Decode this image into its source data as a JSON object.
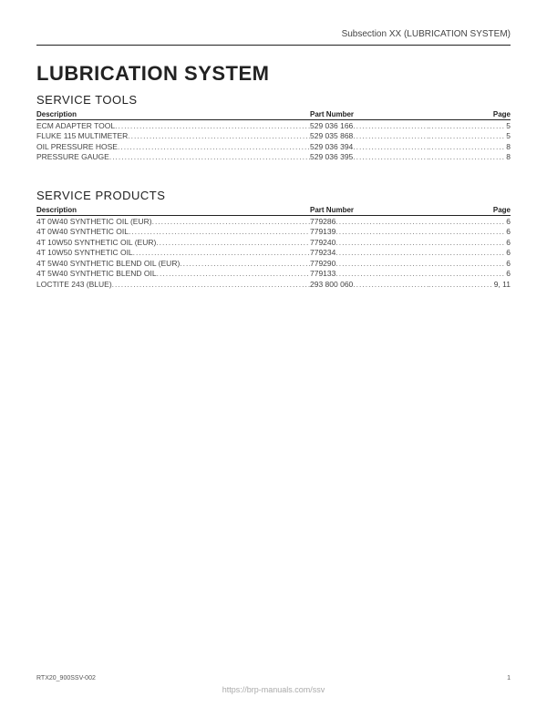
{
  "header": {
    "subsection": "Subsection XX (LUBRICATION SYSTEM)"
  },
  "title": "LUBRICATION SYSTEM",
  "sections": {
    "tools": {
      "heading": "SERVICE TOOLS",
      "columns": {
        "desc": "Description",
        "part": "Part Number",
        "page": "Page"
      },
      "rows": [
        {
          "desc": "ECM ADAPTER TOOL",
          "part": "529 036 166",
          "page": "5"
        },
        {
          "desc": "FLUKE 115 MULTIMETER",
          "part": "529 035 868",
          "page": "5"
        },
        {
          "desc": "OIL PRESSURE HOSE",
          "part": "529 036 394",
          "page": "8"
        },
        {
          "desc": "PRESSURE GAUGE",
          "part": "529 036 395",
          "page": "8"
        }
      ]
    },
    "products": {
      "heading": "SERVICE PRODUCTS",
      "columns": {
        "desc": "Description",
        "part": "Part Number",
        "page": "Page"
      },
      "rows": [
        {
          "desc": "4T 0W40 SYNTHETIC OIL (EUR)",
          "part": "779286",
          "page": "6"
        },
        {
          "desc": "4T 0W40 SYNTHETIC OIL",
          "part": "779139",
          "page": "6"
        },
        {
          "desc": "4T 10W50 SYNTHETIC OIL (EUR)",
          "part": "779240",
          "page": "6"
        },
        {
          "desc": "4T 10W50 SYNTHETIC OIL",
          "part": "779234",
          "page": "6"
        },
        {
          "desc": "4T 5W40 SYNTHETIC BLEND OIL (EUR)",
          "part": "779290",
          "page": "6"
        },
        {
          "desc": "4T 5W40 SYNTHETIC BLEND OIL",
          "part": "779133",
          "page": "6"
        },
        {
          "desc": "LOCTITE 243 (BLUE)",
          "part": "293 800 060",
          "page": "9, 11"
        }
      ]
    }
  },
  "footer": {
    "doc_id": "RTX20_900SSV-002",
    "page_no": "1",
    "watermark": "https://brp-manuals.com/ssv"
  }
}
